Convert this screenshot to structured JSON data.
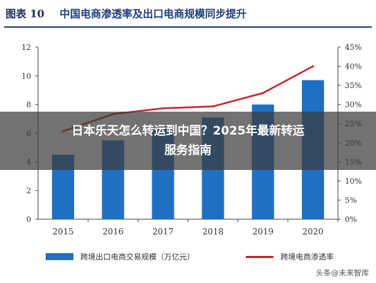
{
  "header": {
    "figure_label": "图表 10",
    "title": "中国电商渗透率及出口电商规模同步提升"
  },
  "overlay": {
    "line1": "日本乐天怎么转运到中国？2025年最新转运",
    "line2": "服务指南"
  },
  "watermark": "头条@未来智库",
  "colors": {
    "bar": "#1f6fc4",
    "line": "#c8232c",
    "title": "#1f3f7a"
  },
  "chart_data": {
    "type": "bar",
    "categories": [
      "2015",
      "2016",
      "2017",
      "2018",
      "2019",
      "2020"
    ],
    "series": [
      {
        "name": "跨境出口电商交易规模（万亿元）",
        "type": "bar",
        "axis": "left",
        "values": [
          4.5,
          5.5,
          6.3,
          7.1,
          8.0,
          9.7
        ]
      },
      {
        "name": "跨境电商渗透率",
        "type": "line",
        "axis": "right",
        "values": [
          0.23,
          0.275,
          0.29,
          0.295,
          0.33,
          0.4
        ]
      }
    ],
    "y_left": {
      "min": 0,
      "max": 12,
      "ticks": [
        0,
        2,
        4,
        6,
        8,
        10,
        12
      ]
    },
    "y_right": {
      "min": 0,
      "max": 0.45,
      "ticks": [
        "0%",
        "5%",
        "10%",
        "15%",
        "20%",
        "25%",
        "30%",
        "35%",
        "40%",
        "45%"
      ]
    },
    "grid": false,
    "legend_position": "bottom"
  }
}
